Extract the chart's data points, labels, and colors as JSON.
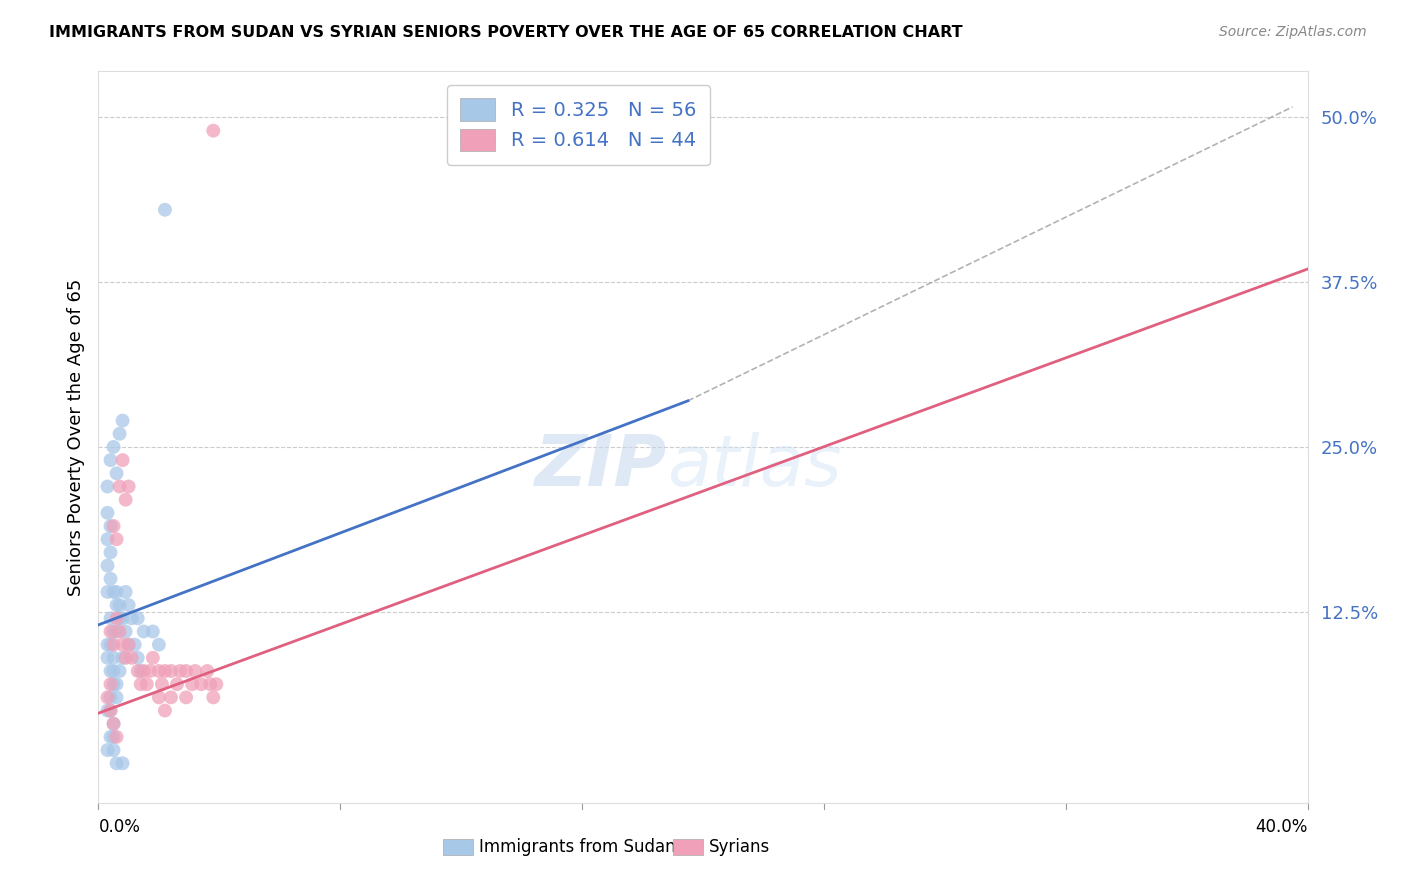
{
  "title": "IMMIGRANTS FROM SUDAN VS SYRIAN SENIORS POVERTY OVER THE AGE OF 65 CORRELATION CHART",
  "source": "Source: ZipAtlas.com",
  "ylabel": "Seniors Poverty Over the Age of 65",
  "ytick_labels": [
    "12.5%",
    "25.0%",
    "37.5%",
    "50.0%"
  ],
  "ytick_values": [
    0.125,
    0.25,
    0.375,
    0.5
  ],
  "xlim": [
    0.0,
    0.4
  ],
  "ylim": [
    -0.02,
    0.535
  ],
  "legend_label1": "Immigrants from Sudan",
  "legend_label2": "Syrians",
  "R1": 0.325,
  "N1": 56,
  "R2": 0.614,
  "N2": 44,
  "color_blue": "#A8C8E8",
  "color_pink": "#F0A0B8",
  "color_blue_dark": "#4472C4",
  "color_pink_dark": "#E06080",
  "watermark_zip": "ZIP",
  "watermark_atlas": "atlas",
  "sudan_points": [
    [
      0.003,
      0.1
    ],
    [
      0.004,
      0.12
    ],
    [
      0.005,
      0.08
    ],
    [
      0.003,
      0.14
    ],
    [
      0.004,
      0.15
    ],
    [
      0.006,
      0.13
    ],
    [
      0.005,
      0.11
    ],
    [
      0.007,
      0.12
    ],
    [
      0.003,
      0.09
    ],
    [
      0.004,
      0.1
    ],
    [
      0.005,
      0.09
    ],
    [
      0.004,
      0.08
    ],
    [
      0.006,
      0.11
    ],
    [
      0.005,
      0.14
    ],
    [
      0.003,
      0.16
    ],
    [
      0.004,
      0.17
    ],
    [
      0.006,
      0.14
    ],
    [
      0.007,
      0.13
    ],
    [
      0.008,
      0.12
    ],
    [
      0.005,
      0.07
    ],
    [
      0.004,
      0.06
    ],
    [
      0.003,
      0.05
    ],
    [
      0.005,
      0.04
    ],
    [
      0.006,
      0.06
    ],
    [
      0.004,
      0.03
    ],
    [
      0.003,
      0.02
    ],
    [
      0.005,
      0.03
    ],
    [
      0.004,
      0.05
    ],
    [
      0.003,
      0.22
    ],
    [
      0.004,
      0.24
    ],
    [
      0.005,
      0.25
    ],
    [
      0.006,
      0.23
    ],
    [
      0.007,
      0.26
    ],
    [
      0.008,
      0.27
    ],
    [
      0.022,
      0.43
    ],
    [
      0.009,
      0.11
    ],
    [
      0.01,
      0.1
    ],
    [
      0.013,
      0.12
    ],
    [
      0.015,
      0.11
    ],
    [
      0.018,
      0.11
    ],
    [
      0.02,
      0.1
    ],
    [
      0.006,
      0.01
    ],
    [
      0.005,
      0.02
    ],
    [
      0.008,
      0.01
    ],
    [
      0.003,
      0.18
    ],
    [
      0.004,
      0.19
    ],
    [
      0.003,
      0.2
    ],
    [
      0.007,
      0.08
    ],
    [
      0.008,
      0.09
    ],
    [
      0.006,
      0.07
    ],
    [
      0.009,
      0.14
    ],
    [
      0.01,
      0.13
    ],
    [
      0.011,
      0.12
    ],
    [
      0.012,
      0.1
    ],
    [
      0.013,
      0.09
    ],
    [
      0.014,
      0.08
    ]
  ],
  "syrian_points": [
    [
      0.004,
      0.11
    ],
    [
      0.005,
      0.1
    ],
    [
      0.006,
      0.12
    ],
    [
      0.007,
      0.11
    ],
    [
      0.008,
      0.1
    ],
    [
      0.009,
      0.09
    ],
    [
      0.01,
      0.1
    ],
    [
      0.011,
      0.09
    ],
    [
      0.013,
      0.08
    ],
    [
      0.014,
      0.07
    ],
    [
      0.015,
      0.08
    ],
    [
      0.016,
      0.07
    ],
    [
      0.017,
      0.08
    ],
    [
      0.018,
      0.09
    ],
    [
      0.02,
      0.08
    ],
    [
      0.021,
      0.07
    ],
    [
      0.022,
      0.08
    ],
    [
      0.024,
      0.08
    ],
    [
      0.026,
      0.07
    ],
    [
      0.027,
      0.08
    ],
    [
      0.029,
      0.08
    ],
    [
      0.031,
      0.07
    ],
    [
      0.032,
      0.08
    ],
    [
      0.007,
      0.22
    ],
    [
      0.008,
      0.24
    ],
    [
      0.009,
      0.21
    ],
    [
      0.01,
      0.22
    ],
    [
      0.005,
      0.19
    ],
    [
      0.006,
      0.18
    ],
    [
      0.004,
      0.05
    ],
    [
      0.005,
      0.04
    ],
    [
      0.006,
      0.03
    ],
    [
      0.003,
      0.06
    ],
    [
      0.004,
      0.07
    ],
    [
      0.034,
      0.07
    ],
    [
      0.036,
      0.08
    ],
    [
      0.037,
      0.07
    ],
    [
      0.038,
      0.06
    ],
    [
      0.039,
      0.07
    ],
    [
      0.038,
      0.49
    ],
    [
      0.02,
      0.06
    ],
    [
      0.022,
      0.05
    ],
    [
      0.024,
      0.06
    ],
    [
      0.029,
      0.06
    ]
  ],
  "blue_line": {
    "x0": 0.0,
    "y0": 0.115,
    "x1": 0.195,
    "y1": 0.285
  },
  "pink_line": {
    "x0": 0.0,
    "y0": 0.048,
    "x1": 0.4,
    "y1": 0.385
  },
  "dashed_line": {
    "x0": 0.195,
    "y0": 0.285,
    "x1": 0.395,
    "y1": 0.508
  }
}
